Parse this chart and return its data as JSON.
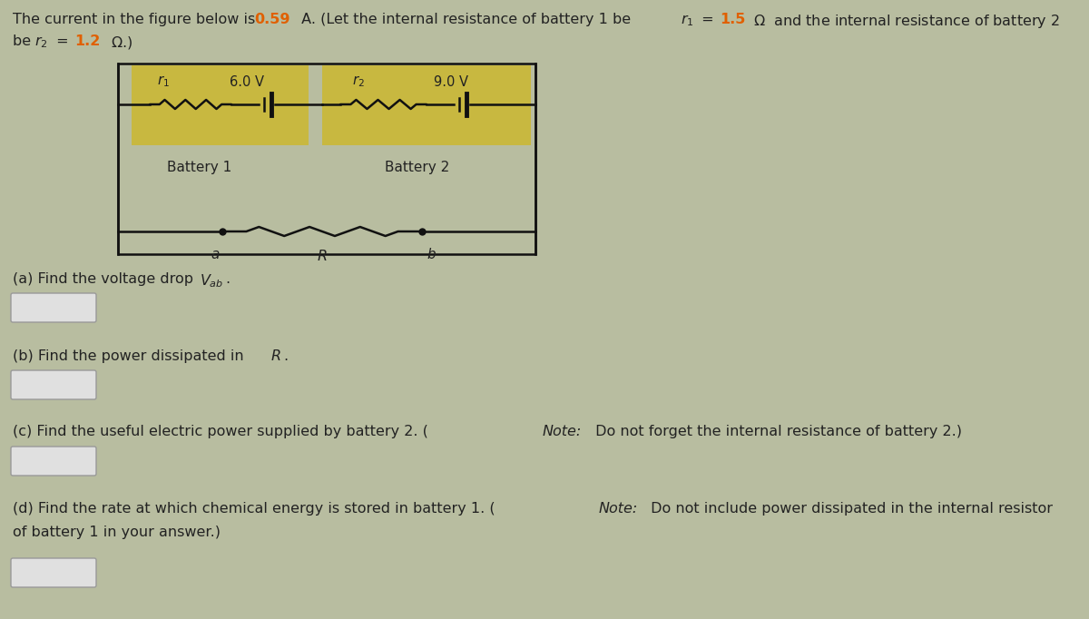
{
  "fig_bg": "#b8bda0",
  "battery1_bg": "#c8b840",
  "battery2_bg": "#c8b840",
  "wire_color": "#111111",
  "battery1_emf": "6.0 V",
  "battery2_emf": "9.0 V",
  "battery1_label": "Battery 1",
  "battery2_label": "Battery 2",
  "r_label": "R",
  "a_label": "a",
  "b_label": "b",
  "answer_box_color": "#e0e0e0",
  "answer_box_edge": "#999999",
  "text_color": "#222222",
  "orange_color": "#e06000"
}
